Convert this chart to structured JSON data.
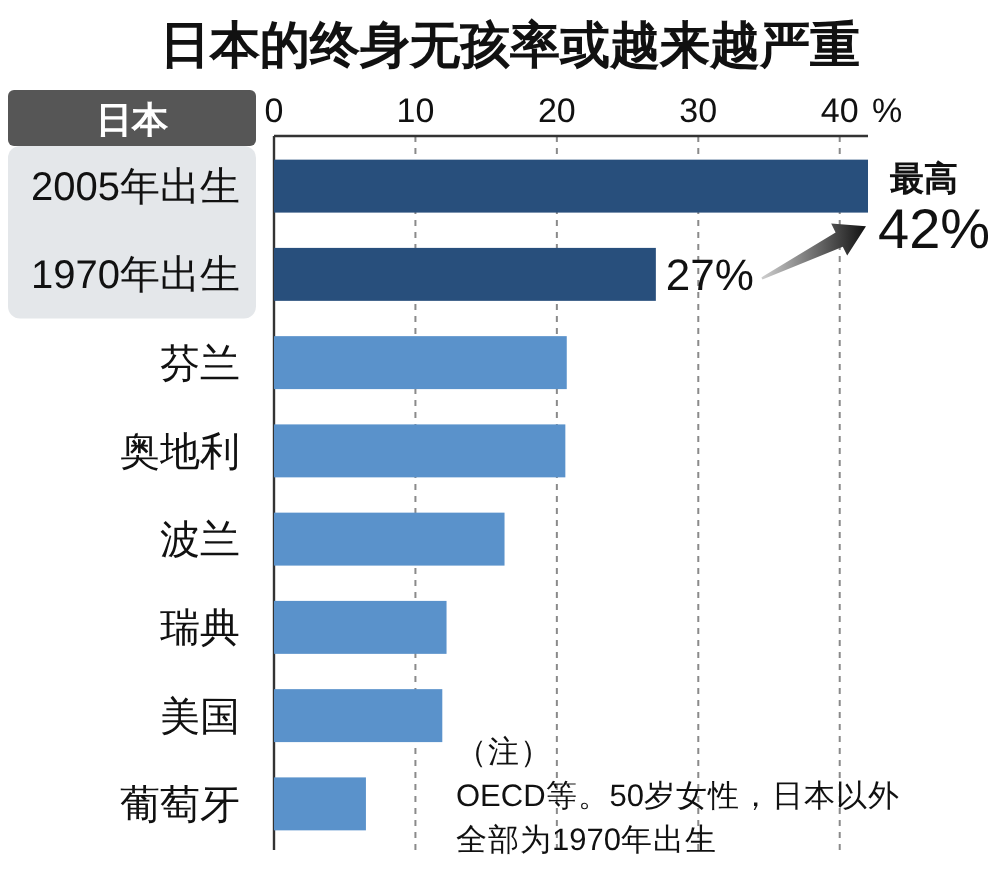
{
  "chart_data": {
    "type": "bar",
    "orientation": "horizontal",
    "title": "日本的终身无孩率或越来越严重",
    "xlabel": "%",
    "categories": [
      "2005年出生",
      "1970年出生",
      "芬兰",
      "奥地利",
      "波兰",
      "瑞典",
      "美国",
      "葡萄牙"
    ],
    "values": [
      42,
      27,
      20.7,
      20.6,
      16.3,
      12.2,
      11.9,
      6.5
    ],
    "colors": [
      "#284f7c",
      "#284f7c",
      "#5a92cb",
      "#5a92cb",
      "#5a92cb",
      "#5a92cb",
      "#5a92cb",
      "#5a92cb"
    ],
    "value_labels": [
      "42%",
      "27%",
      null,
      null,
      null,
      null,
      null,
      null
    ],
    "xlim": [
      0,
      42
    ],
    "xticks": [
      0,
      10,
      20,
      30,
      40
    ],
    "grid": "x",
    "annotations": [
      "日本",
      {
        "text": "最高",
        "x": 42,
        "y": "2005年出生"
      },
      "（注）",
      "OECD等。50岁女性，日本以外",
      "全部为1970年出生"
    ]
  }
}
